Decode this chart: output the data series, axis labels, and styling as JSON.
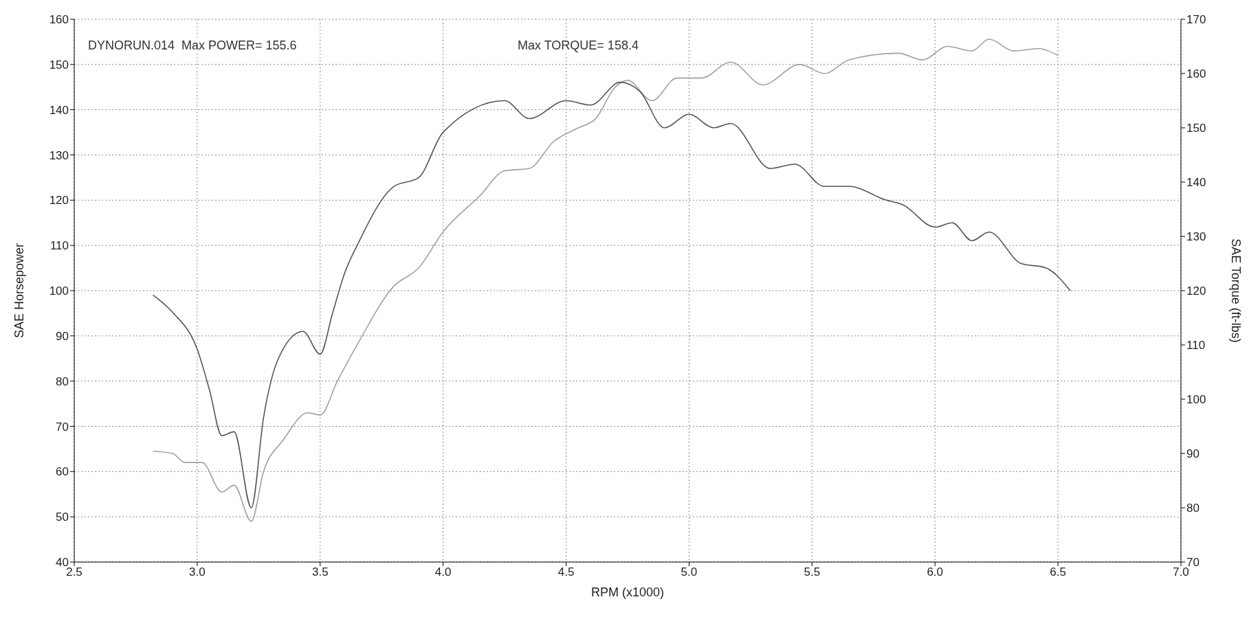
{
  "chart_data": {
    "type": "line",
    "xlabel": "RPM (x1000)",
    "ylabel": "SAE Horsepower",
    "y2label": "SAE Torque (ft-lbs)",
    "annotations": [
      "DYNORUN.014  Max POWER= 155.6",
      "Max TORQUE= 158.4"
    ],
    "xlim": [
      2.5,
      7.0
    ],
    "xticks": [
      {
        "value": 2.5,
        "label": "2.5"
      },
      {
        "value": 3,
        "label": "3.0"
      },
      {
        "value": 3.5,
        "label": "3.5"
      },
      {
        "value": 4,
        "label": "4.0"
      },
      {
        "value": 4.5,
        "label": "4.5"
      },
      {
        "value": 5,
        "label": "5.0"
      },
      {
        "value": 5.5,
        "label": "5.5"
      },
      {
        "value": 6,
        "label": "6.0"
      },
      {
        "value": 6.5,
        "label": "6.5"
      },
      {
        "value": 7,
        "label": "7.0"
      }
    ],
    "ylim": [
      40,
      160
    ],
    "yticks": [
      40,
      50,
      60,
      70,
      80,
      90,
      100,
      110,
      120,
      130,
      140,
      150,
      160
    ],
    "y2lim": [
      70,
      170
    ],
    "y2ticks": [
      70,
      80,
      90,
      100,
      110,
      120,
      130,
      140,
      150,
      160,
      170
    ],
    "grid": true,
    "marker": "none",
    "line_style": "solid",
    "series": [
      {
        "color": "#a0a0a0",
        "x": [
          2.82,
          2.9,
          2.95,
          3.02,
          3.1,
          3.15,
          3.22,
          3.27,
          3.35,
          3.45,
          3.5,
          3.57,
          3.65,
          3.8,
          3.9,
          4.0,
          4.15,
          4.25,
          4.35,
          4.45,
          4.55,
          4.62,
          4.7,
          4.75,
          4.85,
          4.95,
          5.05,
          5.17,
          5.3,
          5.45,
          5.55,
          5.65,
          5.85,
          5.95,
          6.05,
          6.15,
          6.22,
          6.32,
          6.42,
          6.5
        ],
        "values": [
          64.5,
          64,
          62,
          62,
          55.5,
          57,
          49,
          60,
          67,
          73,
          72.5,
          80,
          88,
          101,
          105,
          113,
          121,
          126.5,
          127,
          133,
          136,
          138,
          145,
          146.5,
          142,
          147,
          147,
          150.5,
          145.5,
          150,
          148,
          151,
          152.5,
          151,
          154,
          153,
          155.6,
          153,
          153.5,
          152
        ]
      },
      {
        "color": "#555555",
        "axis": "y2",
        "x": [
          2.82,
          2.9,
          3.0,
          3.05,
          3.1,
          3.15,
          3.22,
          3.27,
          3.33,
          3.43,
          3.5,
          3.55,
          3.6,
          3.65,
          3.8,
          3.9,
          4.0,
          4.25,
          4.35,
          4.5,
          4.6,
          4.72,
          4.8,
          4.9,
          5.0,
          5.1,
          5.17,
          5.33,
          5.43,
          5.55,
          5.65,
          5.8,
          5.87,
          6.0,
          6.07,
          6.15,
          6.22,
          6.35,
          6.45,
          6.55
        ],
        "values": [
          119.2,
          116,
          109.2,
          101.7,
          93.3,
          94,
          80,
          96.7,
          107.5,
          112.5,
          108.3,
          115.8,
          123.3,
          128.3,
          139.2,
          140.8,
          149.2,
          155,
          151.7,
          155,
          154.2,
          158.4,
          156.7,
          150,
          152.5,
          150,
          150.8,
          142.5,
          143.3,
          139.2,
          139.2,
          136.7,
          135.8,
          131.7,
          132.5,
          129.2,
          130.8,
          125,
          124.2,
          120
        ]
      }
    ]
  }
}
